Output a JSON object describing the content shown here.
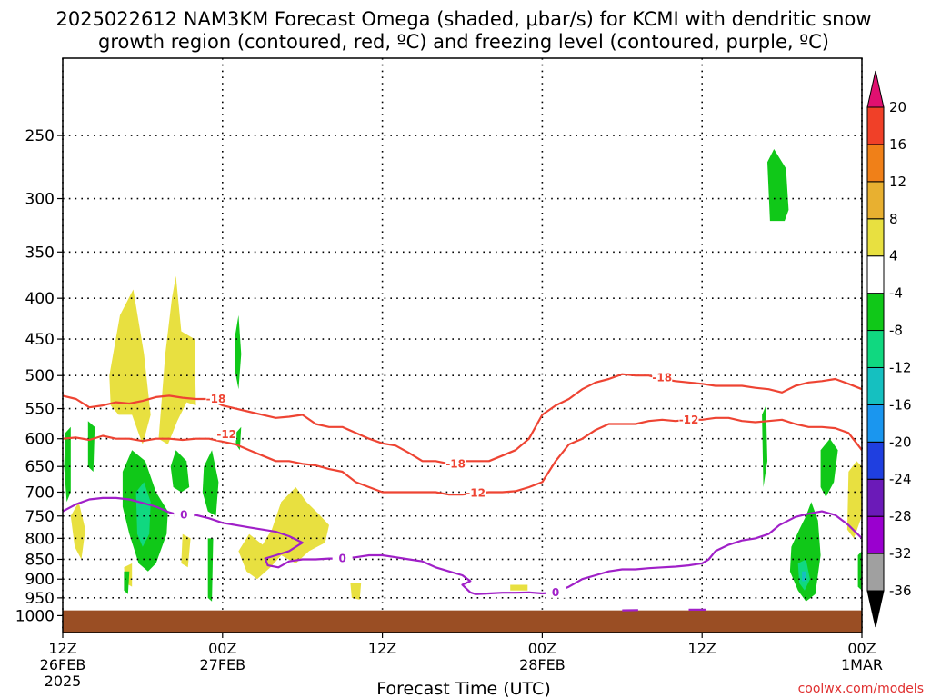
{
  "title": {
    "line1": "2025022612  NAM3KM Forecast Omega (shaded, μbar/s) for KCMI with dendritic snow",
    "line2": "growth region (contoured, red, ºC) and freezing level (contoured, purple, ºC)"
  },
  "credit": "coolwx.com/models",
  "chart_data": {
    "type": "heatmap",
    "xlabel": "Forecast Time (UTC)",
    "ylabel": "",
    "x_range_hours": [
      0,
      60
    ],
    "y_range_hPa": [
      1050,
      200
    ],
    "y_scale": "log-pressure",
    "grid": "dotted",
    "y_ticks": [
      250,
      300,
      350,
      400,
      450,
      500,
      550,
      600,
      650,
      700,
      750,
      800,
      850,
      900,
      950,
      1000
    ],
    "x_ticks": [
      {
        "hour": 0,
        "lines": [
          "12Z",
          "26FEB",
          "2025"
        ]
      },
      {
        "hour": 12,
        "lines": [
          "00Z",
          "27FEB"
        ]
      },
      {
        "hour": 24,
        "lines": [
          "12Z"
        ]
      },
      {
        "hour": 36,
        "lines": [
          "00Z",
          "28FEB"
        ]
      },
      {
        "hour": 48,
        "lines": [
          "12Z"
        ]
      },
      {
        "hour": 60,
        "lines": [
          "00Z",
          "1MAR"
        ]
      }
    ],
    "ground_pressure_hPa": 985,
    "colorbar": {
      "levels": [
        -36,
        -32,
        -28,
        -24,
        -20,
        -16,
        -12,
        -8,
        -4,
        4,
        8,
        12,
        16,
        20
      ],
      "colors": [
        "#000000",
        "#a0a0a0",
        "#9a00cf",
        "#6b1ab8",
        "#1f3fe0",
        "#1a96ef",
        "#15c0c0",
        "#10d880",
        "#10c818",
        "#ffffff",
        "#e8e040",
        "#e8b030",
        "#f08018",
        "#f04028",
        "#e01070"
      ]
    },
    "contours": [
      {
        "name": "-18",
        "color": "#ee4433",
        "label_positions_hour": [
          11.5,
          29.5,
          45
        ]
      },
      {
        "name": "-12",
        "color": "#ee4433",
        "label_positions_hour": [
          12,
          31,
          47
        ]
      },
      {
        "name": "0",
        "color": "#a020c8",
        "label_positions_hour": [
          9,
          21,
          37
        ]
      }
    ]
  }
}
